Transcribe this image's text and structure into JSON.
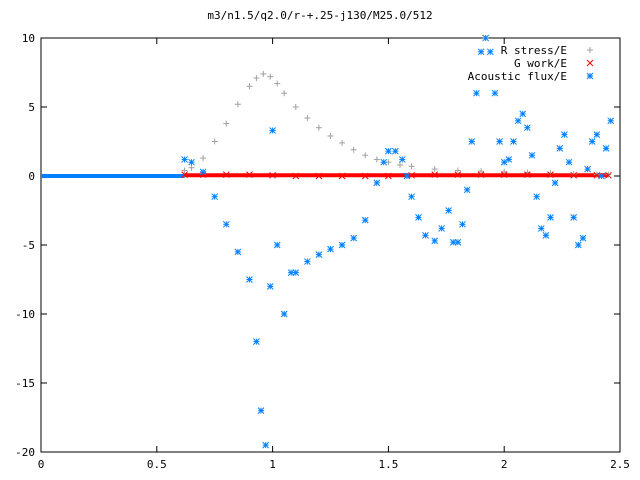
{
  "chart_data": {
    "type": "scatter",
    "title": "m3/n1.5/q2.0/r-+.25-j130/M25.0/512",
    "xlabel": "",
    "ylabel": "",
    "xlim": [
      0,
      2.5
    ],
    "ylim": [
      -20,
      10
    ],
    "xticks": [
      "0",
      "0.5",
      "1",
      "1.5",
      "2",
      "2.5"
    ],
    "yticks": [
      "10",
      "5",
      "0",
      "-5",
      "-10",
      "-15",
      "-20"
    ],
    "grid": false,
    "legend_position": "top-right",
    "series": [
      {
        "name": "R stress/E",
        "color": "#a0a0a0",
        "marker": "plus",
        "x": [
          0.62,
          0.65,
          0.7,
          0.75,
          0.8,
          0.85,
          0.9,
          0.93,
          0.96,
          0.99,
          1.02,
          1.05,
          1.1,
          1.15,
          1.2,
          1.25,
          1.3,
          1.35,
          1.4,
          1.45,
          1.5,
          1.55,
          1.6,
          1.7,
          1.8,
          1.9,
          2.0,
          2.1,
          2.2,
          2.3,
          2.4,
          2.45
        ],
        "y": [
          0.4,
          0.6,
          1.3,
          2.5,
          3.8,
          5.2,
          6.5,
          7.1,
          7.4,
          7.2,
          6.7,
          6.0,
          5.0,
          4.2,
          3.5,
          2.9,
          2.4,
          1.9,
          1.5,
          1.2,
          1.0,
          0.8,
          0.7,
          0.5,
          0.4,
          0.35,
          0.3,
          0.25,
          0.2,
          0.15,
          0.1,
          0.1
        ]
      },
      {
        "name": "G work/E",
        "color": "#ff0000",
        "marker": "cross",
        "x": [
          0.62,
          0.7,
          0.8,
          0.9,
          1.0,
          1.1,
          1.2,
          1.3,
          1.4,
          1.5,
          1.6,
          1.7,
          1.8,
          1.9,
          2.0,
          2.1,
          2.2,
          2.3,
          2.4,
          2.45
        ],
        "y": [
          0.1,
          0.1,
          0.1,
          0.1,
          0.05,
          0.0,
          0.0,
          0.0,
          0.0,
          0.0,
          0.05,
          0.1,
          0.1,
          0.1,
          0.1,
          0.1,
          0.1,
          0.05,
          0.05,
          0.05
        ]
      },
      {
        "name": "Acoustic flux/E",
        "color": "#0080ff",
        "marker": "star",
        "x": [
          0.62,
          0.65,
          0.7,
          0.75,
          0.8,
          0.85,
          0.9,
          0.93,
          0.95,
          0.97,
          0.99,
          1.0,
          1.02,
          1.05,
          1.08,
          1.1,
          1.15,
          1.2,
          1.25,
          1.3,
          1.35,
          1.4,
          1.45,
          1.48,
          1.5,
          1.53,
          1.56,
          1.58,
          1.6,
          1.63,
          1.66,
          1.7,
          1.73,
          1.76,
          1.78,
          1.8,
          1.82,
          1.84,
          1.86,
          1.88,
          1.9,
          1.92,
          1.94,
          1.96,
          1.98,
          2.0,
          2.02,
          2.04,
          2.06,
          2.08,
          2.1,
          2.12,
          2.14,
          2.16,
          2.18,
          2.2,
          2.22,
          2.24,
          2.26,
          2.28,
          2.3,
          2.32,
          2.34,
          2.36,
          2.38,
          2.4,
          2.42,
          2.44,
          2.46
        ],
        "y": [
          1.2,
          1.0,
          0.3,
          -1.5,
          -3.5,
          -5.5,
          -7.5,
          -12.0,
          -17.0,
          -19.5,
          -8.0,
          3.3,
          -5.0,
          -10.0,
          -7.0,
          -7.0,
          -6.2,
          -5.7,
          -5.3,
          -5.0,
          -4.5,
          -3.2,
          -0.5,
          1.0,
          1.8,
          1.8,
          1.2,
          0.0,
          -1.5,
          -3.0,
          -4.3,
          -4.7,
          -3.8,
          -2.5,
          -4.8,
          -4.8,
          -3.5,
          -1.0,
          2.5,
          6.0,
          9.0,
          10.0,
          9.0,
          6.0,
          2.5,
          1.0,
          1.2,
          2.5,
          4.0,
          4.5,
          3.5,
          1.5,
          -1.5,
          -3.8,
          -4.3,
          -3.0,
          -0.5,
          2.0,
          3.0,
          1.0,
          -3.0,
          -5.0,
          -4.5,
          0.5,
          2.5,
          3.0,
          0.0,
          2.0,
          4.0
        ]
      }
    ]
  }
}
